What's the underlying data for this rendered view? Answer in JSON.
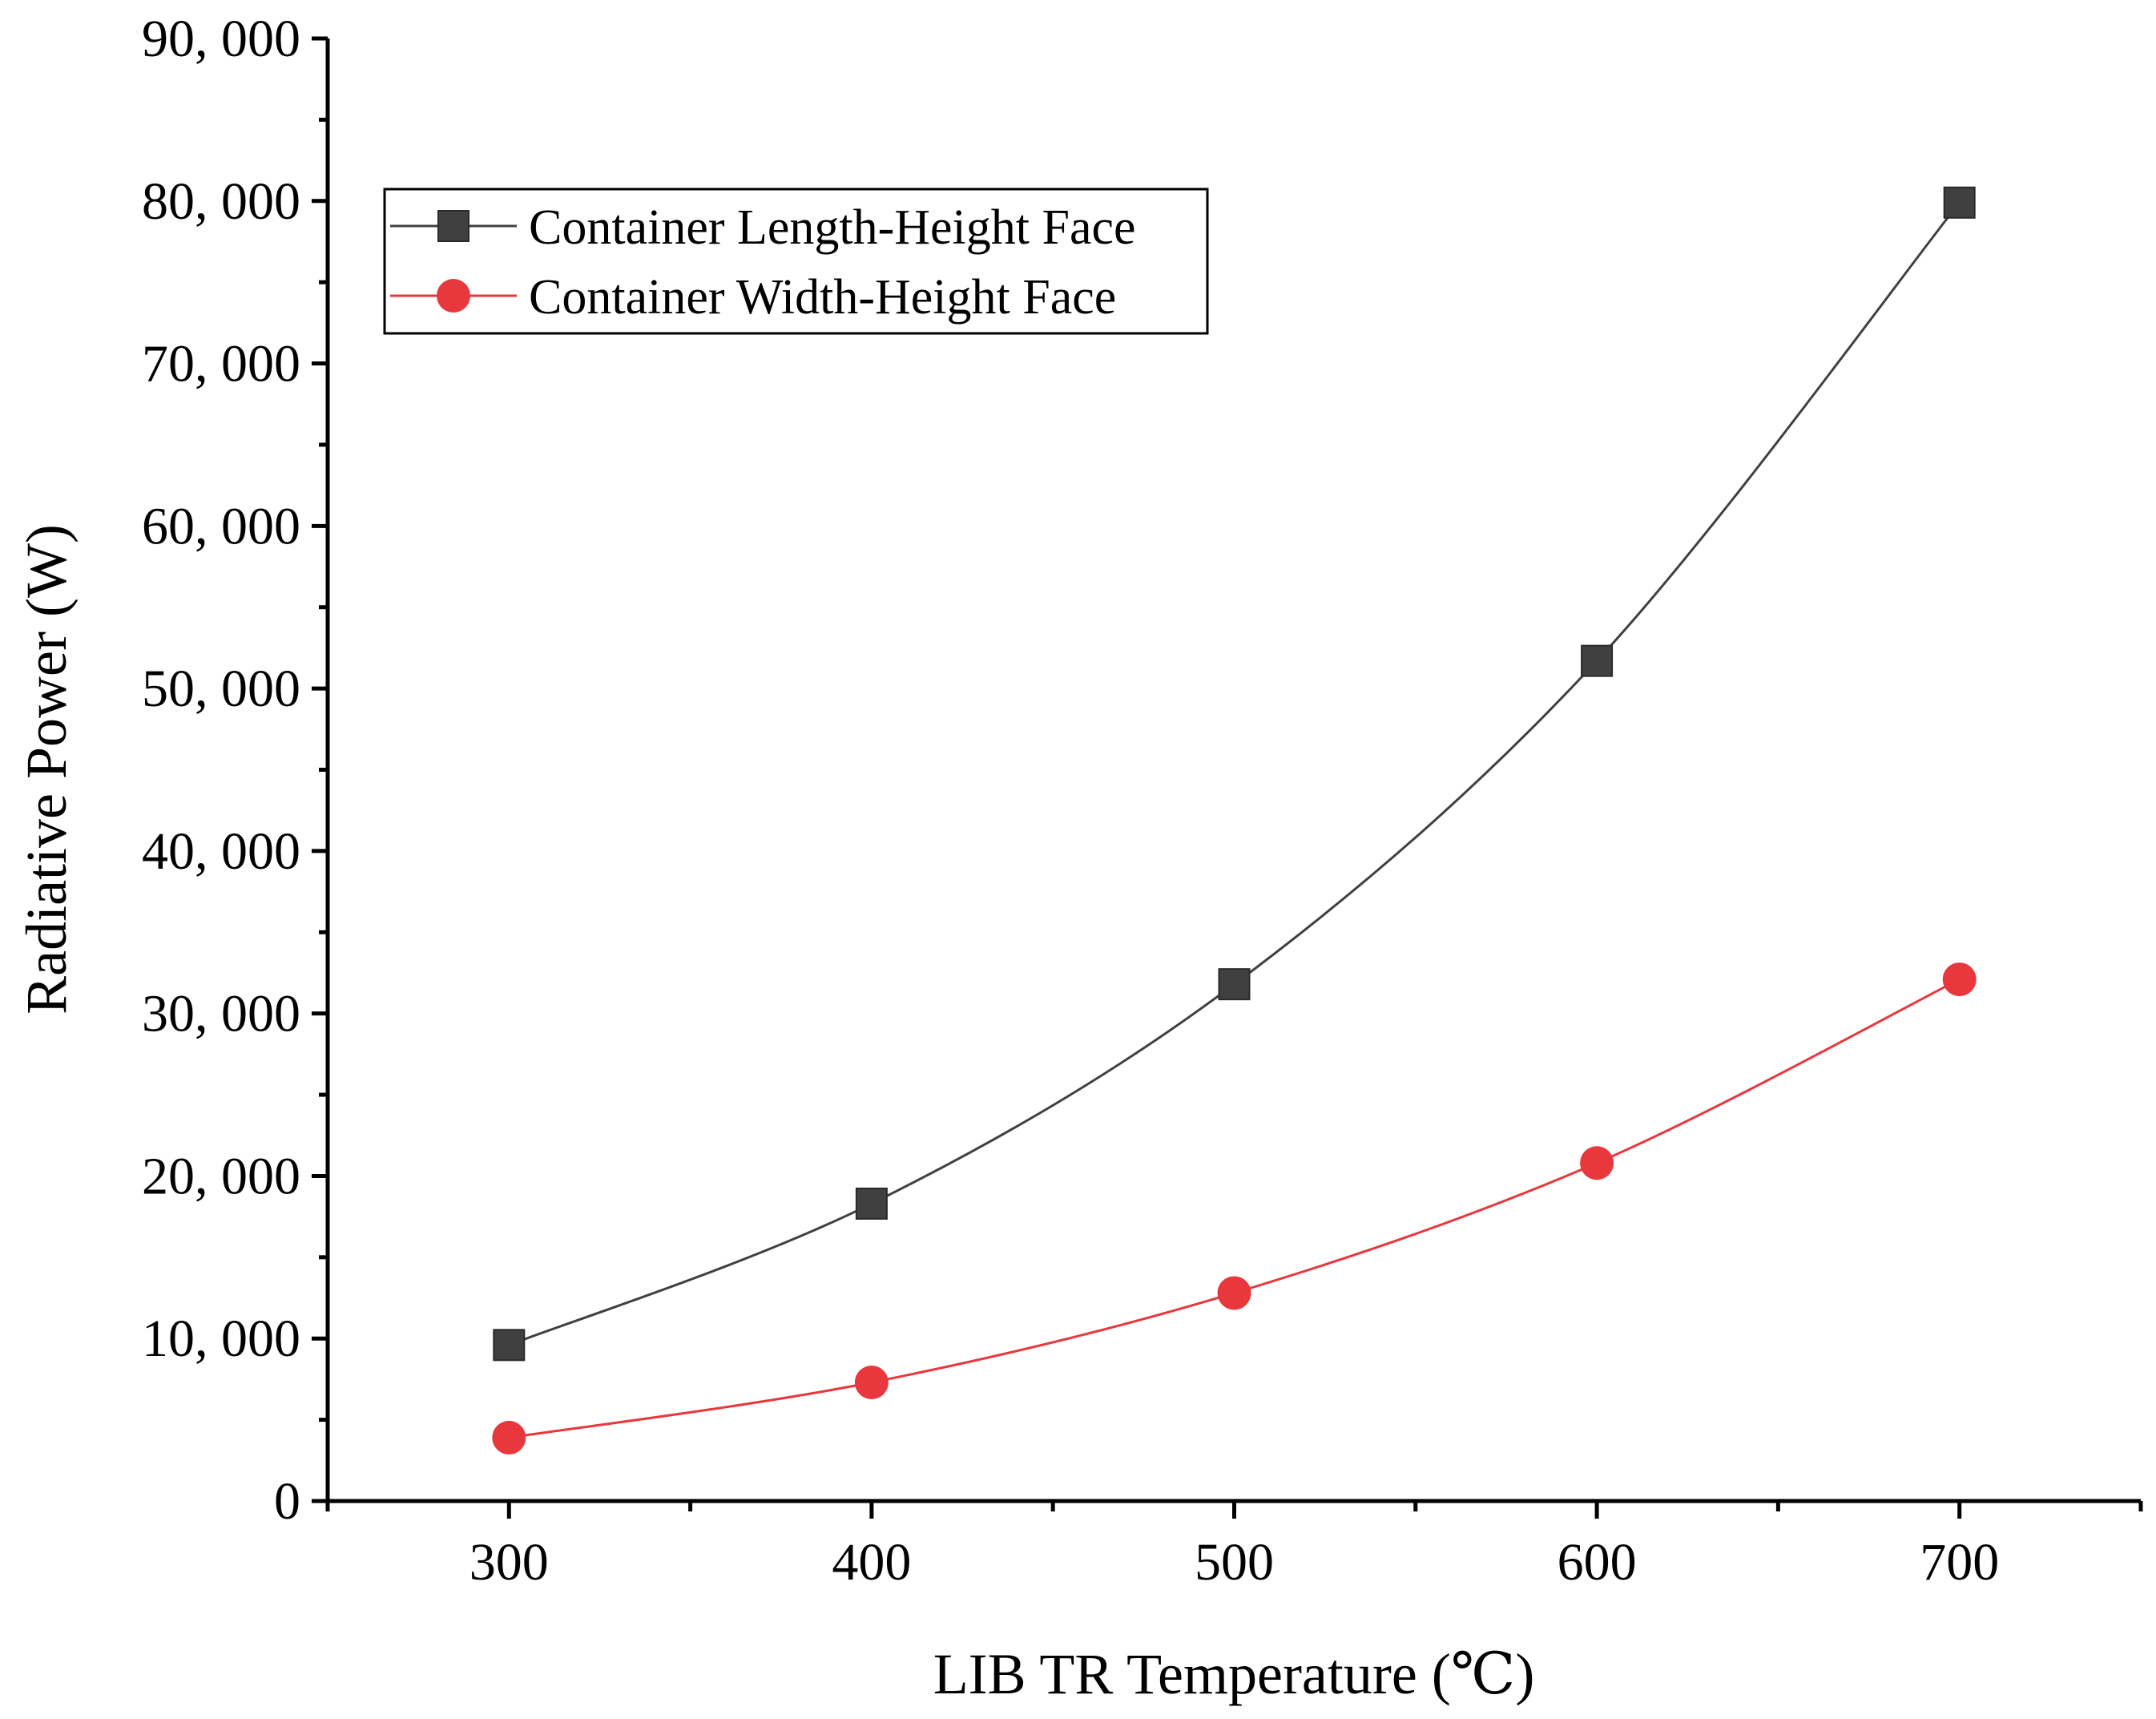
{
  "chart_data": {
    "type": "line",
    "title": "",
    "xlabel": "LIB TR Temperature (℃)",
    "ylabel": "Radiative Power (W)",
    "x": [
      300,
      400,
      500,
      600,
      700
    ],
    "xlim": [
      250,
      750
    ],
    "ylim": [
      0,
      90000
    ],
    "x_ticks": [
      "300",
      "400",
      "500",
      "600",
      "700"
    ],
    "y_ticks": [
      "0",
      "10, 000",
      "20, 000",
      "30, 000",
      "40, 000",
      "50, 000",
      "60, 000",
      "70, 000",
      "80, 000",
      "90, 000"
    ],
    "grid": false,
    "legend_position": "top-left",
    "series": [
      {
        "name": "Container Length-Height Face",
        "values": [
          9600,
          18300,
          31800,
          51700,
          79900
        ],
        "color": "#404040",
        "marker": "square"
      },
      {
        "name": "Container Width-Height Face",
        "values": [
          3900,
          7300,
          12800,
          20800,
          32100
        ],
        "color": "#e8383d",
        "marker": "circle"
      }
    ]
  }
}
